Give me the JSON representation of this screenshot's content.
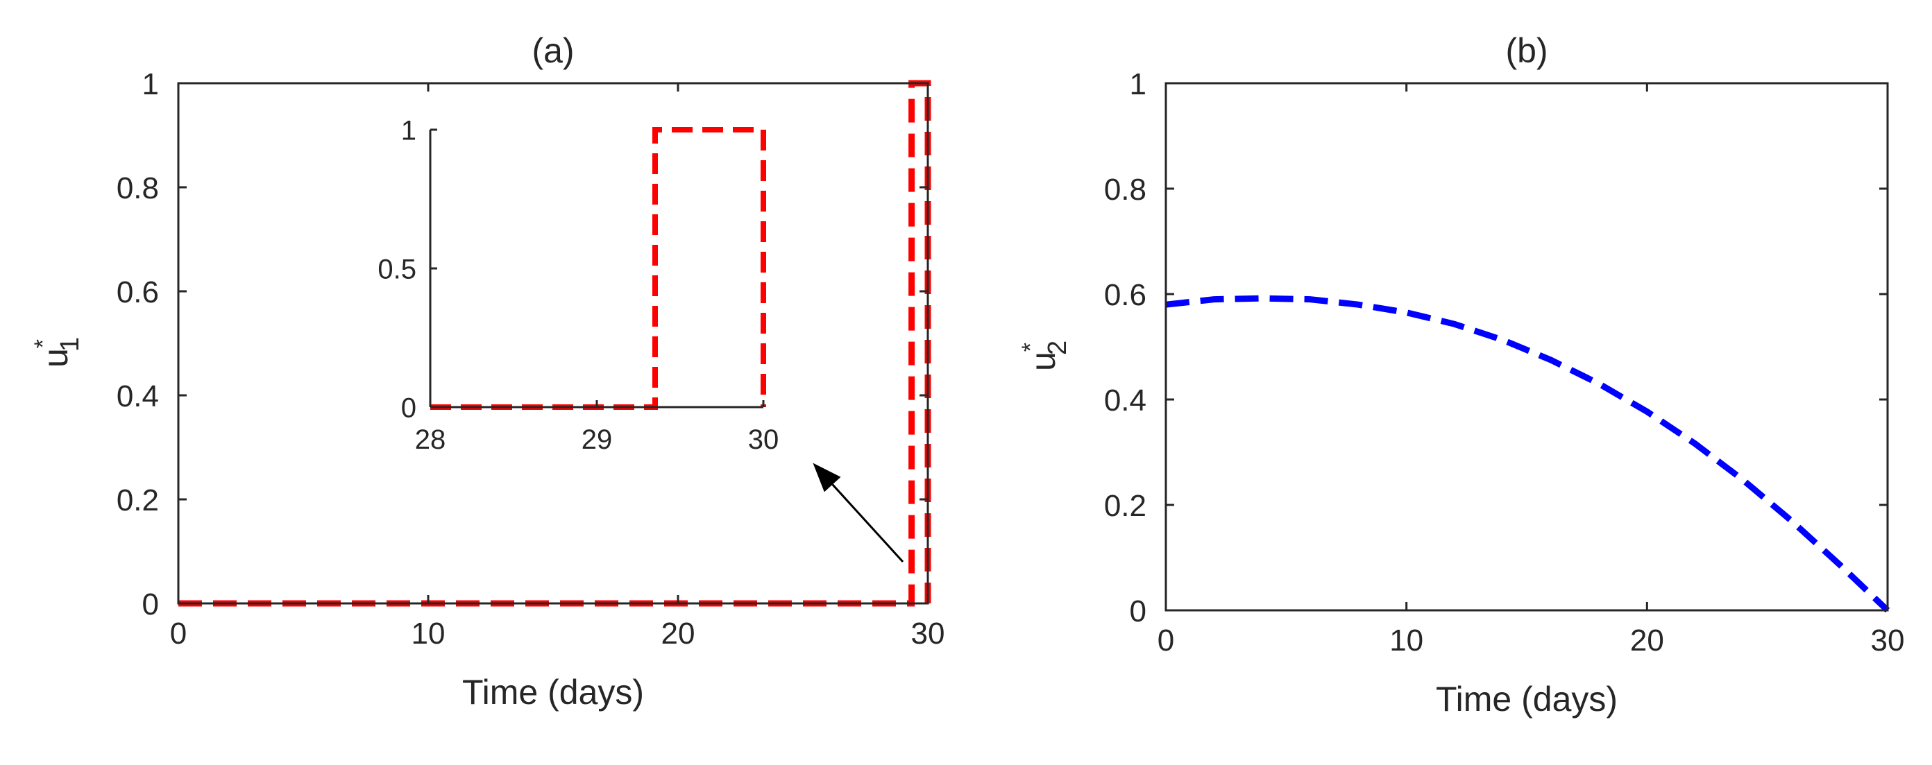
{
  "chart_data": [
    {
      "panel": "(a)",
      "type": "line",
      "title": "(a)",
      "xlabel": "Time (days)",
      "ylabel_base": "u",
      "ylabel_sup": "*",
      "ylabel_sub": "1",
      "xlim": [
        0,
        30
      ],
      "ylim": [
        0,
        1
      ],
      "xticks": [
        0,
        10,
        20,
        30
      ],
      "yticks": [
        0,
        0.2,
        0.4,
        0.6,
        0.8,
        1
      ],
      "grid": false,
      "series": [
        {
          "color": "#ff0000",
          "style": "dashed",
          "x": [
            0,
            29.35,
            29.35,
            30,
            30
          ],
          "y": [
            0,
            0,
            1,
            1,
            0
          ]
        }
      ],
      "inset": {
        "xlim": [
          28,
          30
        ],
        "ylim": [
          0,
          1
        ],
        "xticks": [
          28,
          29,
          30
        ],
        "yticks": [
          0,
          0.5,
          1
        ],
        "series": [
          {
            "color": "#ff0000",
            "style": "dashed",
            "x": [
              28,
              29.35,
              29.35,
              30,
              30
            ],
            "y": [
              0,
              0,
              1,
              1,
              0
            ]
          }
        ]
      },
      "annotation": {
        "type": "arrow",
        "from": [
          29.0,
          0.08
        ],
        "to": [
          25.4,
          0.27
        ]
      }
    },
    {
      "panel": "(b)",
      "type": "line",
      "title": "(b)",
      "xlabel": "Time (days)",
      "ylabel_base": "u",
      "ylabel_sup": "*",
      "ylabel_sub": "2",
      "xlim": [
        0,
        30
      ],
      "ylim": [
        0,
        1
      ],
      "xticks": [
        0,
        10,
        20,
        30
      ],
      "yticks": [
        0,
        0.2,
        0.4,
        0.6,
        0.8,
        1
      ],
      "grid": false,
      "series": [
        {
          "color": "#0000ff",
          "style": "dashed",
          "x": [
            0,
            2,
            4,
            6,
            8,
            10,
            12,
            14,
            16,
            18,
            20,
            22,
            24,
            26,
            28,
            30
          ],
          "y": [
            0.58,
            0.59,
            0.592,
            0.59,
            0.58,
            0.565,
            0.543,
            0.513,
            0.475,
            0.43,
            0.377,
            0.316,
            0.247,
            0.17,
            0.087,
            0.0
          ]
        }
      ]
    }
  ]
}
